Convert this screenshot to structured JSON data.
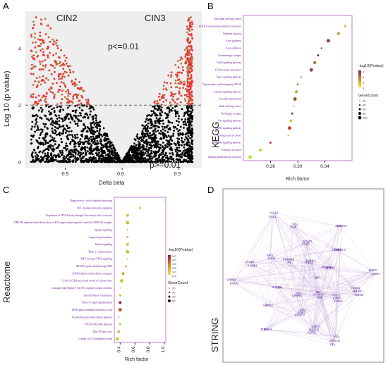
{
  "panels": {
    "a": "A",
    "b": "B",
    "c": "C",
    "d": "D"
  },
  "chart_data": [
    {
      "type": "scatter",
      "name": "volcano",
      "xlabel": "Delta beta",
      "ylabel": "Log 10 (p value)",
      "xticks": [
        "-0.5",
        "0.0",
        "0.5"
      ],
      "yticks": [
        "0",
        "2",
        "4"
      ],
      "xlim": [
        -0.85,
        0.7
      ],
      "ylim": [
        -0.2,
        5.3
      ],
      "threshold_y": 2,
      "group_labels": {
        "left": "CIN2",
        "right": "CIN3"
      },
      "annotations": {
        "upper": "p<=0.01",
        "lower": "p>=0.01"
      },
      "colors": {
        "significant": "#e53935",
        "highlight": "#b07a3a",
        "nonsignificant": "#000000",
        "background": "#eeeeee"
      }
    },
    {
      "type": "scatter",
      "name": "kegg",
      "ylabel": "KEGG",
      "xlabel": "Rich factor",
      "xticks": [
        0.26,
        0.3,
        0.34
      ],
      "xlim": [
        0.22,
        0.38
      ],
      "categories": [
        "Non-small cell lung cancer",
        "EGFR tyrosine kinase inhibitor resistance",
        "Adherens junction",
        "Axon guidance",
        "Focal adhesion",
        "Glutamatergic synapse",
        "ErbB signaling pathway",
        "ECM-receptor interaction",
        "Rap1 signaling pathway",
        "Hypertrophic cardiomyopathy (HCM)",
        "Calcium signaling pathway",
        "Circadian entrainment",
        "Small cell lung cancer",
        "Cholinergic synapse",
        "Ras signaling pathway",
        "MAPK signaling pathway",
        "Proteoglycans in cancer",
        "PI3K-Akt signaling pathway",
        "Pathways in cancer",
        "Human papillomavirus infection"
      ],
      "values": [
        0.38,
        0.37,
        0.36,
        0.345,
        0.335,
        0.33,
        0.325,
        0.32,
        0.305,
        0.3,
        0.298,
        0.296,
        0.294,
        0.292,
        0.29,
        0.288,
        0.286,
        0.26,
        0.245,
        0.23
      ],
      "legend": {
        "color_title": "-log10(Pvalue)",
        "color_ticks": [
          "6",
          "5",
          "4",
          "3"
        ],
        "size_title": "GeneCount",
        "size_ticks": [
          "20",
          "40",
          "60",
          "80",
          "100"
        ]
      }
    },
    {
      "type": "scatter",
      "name": "reactome",
      "ylabel": "Reactome",
      "xlabel": "Rich factor",
      "xticks": [
        0.4,
        0.6,
        0.8,
        1.0
      ],
      "xlim": [
        0.32,
        1.02
      ],
      "categories": [
        "Regulation of cortical dendrite branching",
        "DCC mediated attractive signaling",
        "Regulation of TP53 Activity through Association with Co-factors",
        "DREAM repression and dissociation of E2F targets under negative control by DREAM complex",
        "Integrin signaling",
        "Long-term potentiation",
        "Ephrin signaling",
        "Phase 2 - plateau phase",
        "MET activates PTK2 signaling",
        "NRAGE signals death through JNK",
        "SUMOylation of intracellular receptors",
        "Cyclin A:Cdk2-associated events at S phase entry",
        "Glucagon-like Peptide-1 (GLP1) regulates insulin secretion",
        "Smooth Muscle Contraction",
        "Phase 0 - rapid depolarisation",
        "EPH-ephrin mediated repulsion of cells",
        "Nuclear Receptor transcription pathway",
        "VEGFA-VEGFR2 Pathway",
        "Rho GTPase cycle",
        "G alpha (12/13) signalling events"
      ],
      "values": [
        1.0,
        0.67,
        0.5,
        0.5,
        0.5,
        0.5,
        0.5,
        0.5,
        0.5,
        0.48,
        0.44,
        0.42,
        0.4,
        0.4,
        0.4,
        0.4,
        0.38,
        0.4,
        0.38,
        0.36
      ],
      "legend": {
        "color_title": "-log10(Pvalue)",
        "color_ticks": [
          "5.0",
          "4.5",
          "4.0",
          "3.5",
          "3.0",
          "2.5"
        ],
        "size_title": "GeneCount",
        "size_ticks": [
          "20",
          "30",
          "40",
          "50"
        ]
      }
    }
  ],
  "string": {
    "ylabel": "STRING",
    "nodes": [
      "MET",
      "FGFR4",
      "FGFR1",
      "KDR",
      "FES",
      "FGFR3",
      "HDAC9",
      "EPHA3",
      "PDE1",
      "ABL1",
      "HACE1",
      "EPHB2",
      "EPHB3",
      "MET",
      "CREBBP",
      "IGF1R",
      "TP53",
      "KEAP1",
      "ERBB3",
      "ZNHIT1",
      "ZDHHC17",
      "EPHA4",
      "CASP3",
      "PHLPP1",
      "EPHB1",
      "NOTCH1",
      "PIK3CB",
      "PIK3CD",
      "NGR3",
      "EGF",
      "RHOA",
      "ACLY",
      "ESR1",
      "RALA",
      "CTNNB1",
      "PTEN",
      "CDK2",
      "EXT2",
      "INSR",
      "EGFR",
      "TOP2A",
      "FGR",
      "LIMK1",
      "DNAJB6",
      "FURIN",
      "INSRR",
      "STK11",
      "FES",
      "LYN",
      "ZAP70",
      "FSK2"
    ]
  }
}
